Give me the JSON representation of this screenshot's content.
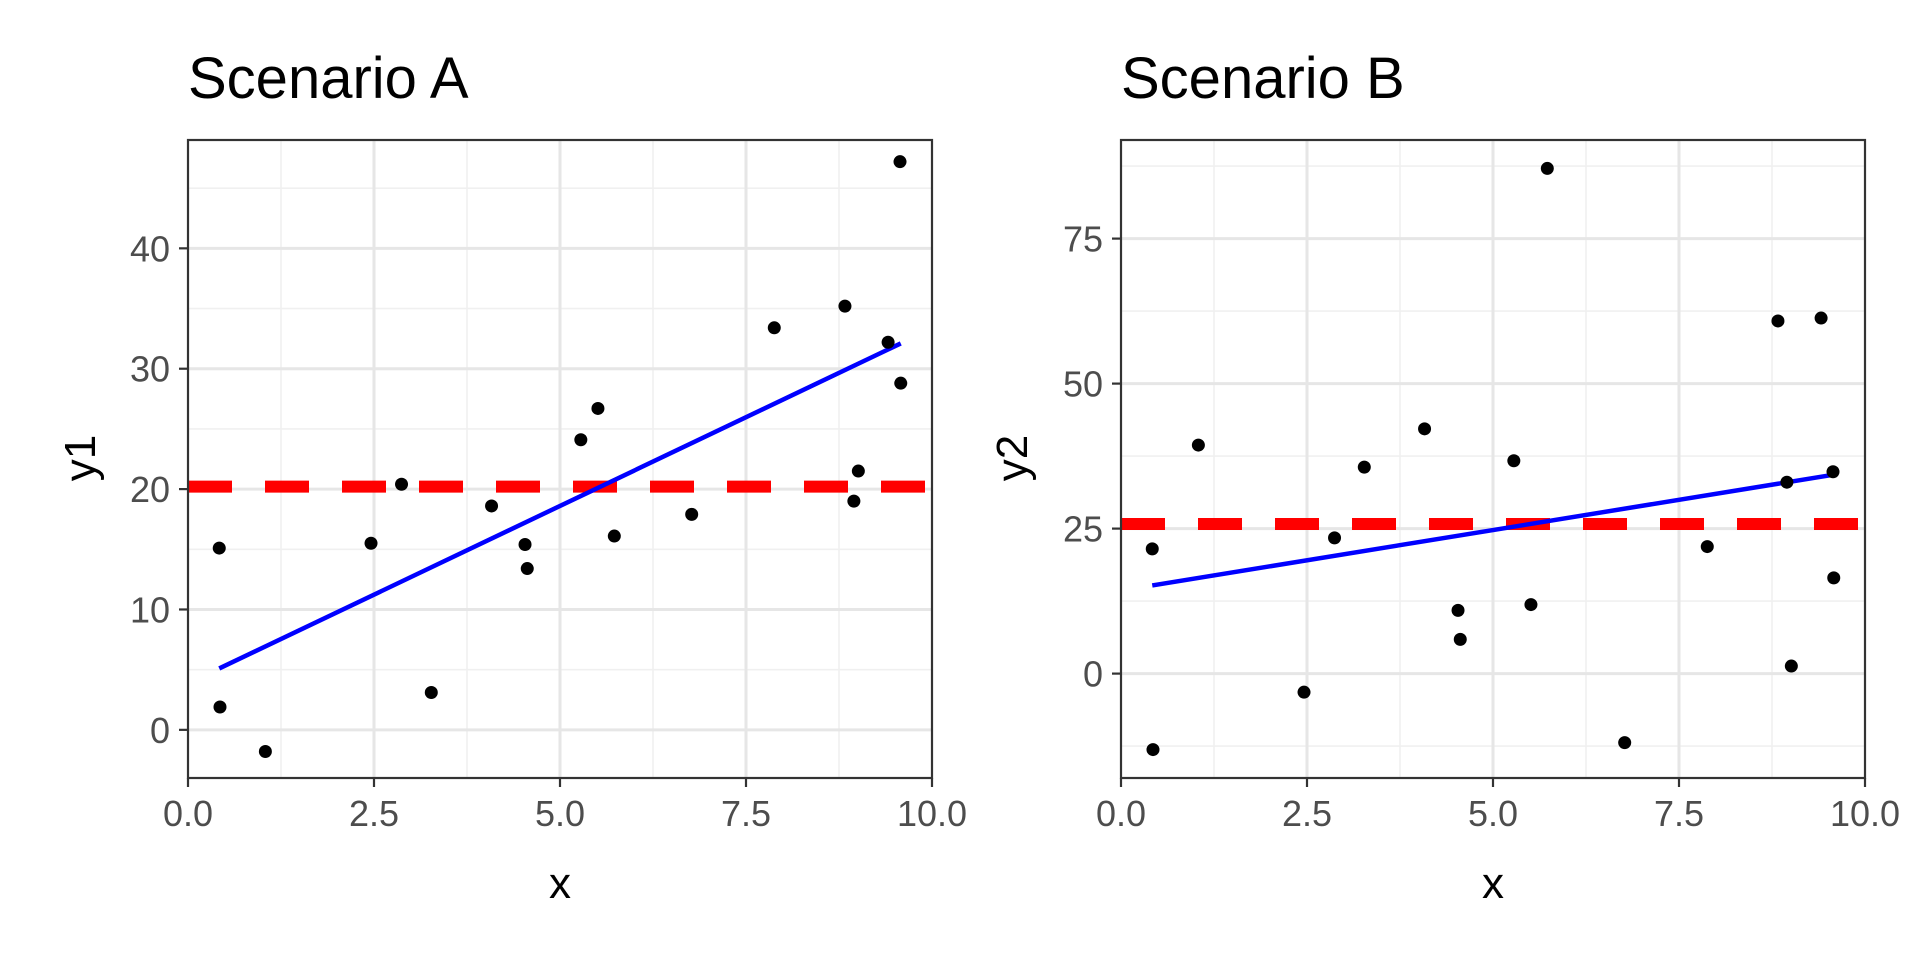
{
  "chart_data": [
    {
      "type": "scatter",
      "title": "Scenario A",
      "xlabel": "x",
      "ylabel": "y1",
      "xlim": [
        0,
        10
      ],
      "ylim": [
        -4,
        49
      ],
      "xticks": [
        0,
        2.5,
        5,
        7.5,
        10
      ],
      "xtick_labels": [
        "0.0",
        "2.5",
        "5.0",
        "7.5",
        "10.0"
      ],
      "yticks": [
        0,
        10,
        20,
        30,
        40
      ],
      "ytick_labels": [
        "0",
        "10",
        "20",
        "30",
        "40"
      ],
      "grid": true,
      "points": [
        {
          "x": 0.42,
          "y": 15.1
        },
        {
          "x": 0.43,
          "y": 1.9
        },
        {
          "x": 1.04,
          "y": -1.8
        },
        {
          "x": 2.46,
          "y": 15.5
        },
        {
          "x": 2.87,
          "y": 20.4
        },
        {
          "x": 3.27,
          "y": 3.1
        },
        {
          "x": 4.08,
          "y": 18.6
        },
        {
          "x": 4.53,
          "y": 15.4
        },
        {
          "x": 4.56,
          "y": 13.4
        },
        {
          "x": 5.28,
          "y": 24.1
        },
        {
          "x": 5.51,
          "y": 26.7
        },
        {
          "x": 5.73,
          "y": 16.1
        },
        {
          "x": 6.77,
          "y": 17.9
        },
        {
          "x": 7.88,
          "y": 33.4
        },
        {
          "x": 8.83,
          "y": 35.2
        },
        {
          "x": 8.95,
          "y": 19.0
        },
        {
          "x": 9.01,
          "y": 21.5
        },
        {
          "x": 9.41,
          "y": 32.2
        },
        {
          "x": 9.57,
          "y": 47.2
        },
        {
          "x": 9.58,
          "y": 28.8
        }
      ],
      "fit_line": {
        "x": [
          0.42,
          9.58
        ],
        "y": [
          5.1,
          32.1
        ],
        "color": "#0000ff"
      },
      "hline": {
        "y": 20.2,
        "color": "#ff0000",
        "style": "dashed"
      }
    },
    {
      "type": "scatter",
      "title": "Scenario B",
      "xlabel": "x",
      "ylabel": "y2",
      "xlim": [
        0,
        10
      ],
      "ylim": [
        -18,
        92
      ],
      "xticks": [
        0,
        2.5,
        5,
        7.5,
        10
      ],
      "xtick_labels": [
        "0.0",
        "2.5",
        "5.0",
        "7.5",
        "10.0"
      ],
      "yticks": [
        0,
        25,
        50,
        75
      ],
      "ytick_labels": [
        "0",
        "25",
        "50",
        "75"
      ],
      "grid": true,
      "points": [
        {
          "x": 0.42,
          "y": 21.5
        },
        {
          "x": 0.43,
          "y": -13.1
        },
        {
          "x": 1.04,
          "y": 39.4
        },
        {
          "x": 2.46,
          "y": -3.2
        },
        {
          "x": 2.87,
          "y": 23.4
        },
        {
          "x": 3.27,
          "y": 35.6
        },
        {
          "x": 4.08,
          "y": 42.2
        },
        {
          "x": 4.53,
          "y": 10.9
        },
        {
          "x": 4.56,
          "y": 5.9
        },
        {
          "x": 5.28,
          "y": 36.7
        },
        {
          "x": 5.51,
          "y": 11.9
        },
        {
          "x": 5.73,
          "y": 87.1
        },
        {
          "x": 6.77,
          "y": -11.9
        },
        {
          "x": 7.88,
          "y": 21.9
        },
        {
          "x": 8.83,
          "y": 60.8
        },
        {
          "x": 8.95,
          "y": 33.0
        },
        {
          "x": 9.01,
          "y": 1.3
        },
        {
          "x": 9.41,
          "y": 61.3
        },
        {
          "x": 9.57,
          "y": 34.8
        },
        {
          "x": 9.58,
          "y": 16.5
        }
      ],
      "fit_line": {
        "x": [
          0.42,
          9.58
        ],
        "y": [
          15.2,
          34.3
        ],
        "color": "#0000ff"
      },
      "hline": {
        "y": 25.8,
        "color": "#ff0000",
        "style": "dashed"
      }
    }
  ]
}
